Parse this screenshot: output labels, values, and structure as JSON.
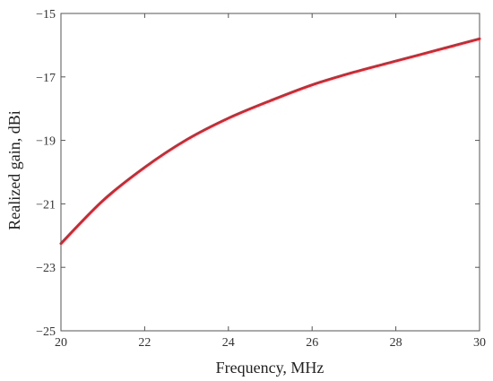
{
  "chart_data": {
    "type": "line",
    "title": "",
    "xlabel": "Frequency, MHz",
    "ylabel": "Realized gain, dBi",
    "xlim": [
      20,
      30
    ],
    "ylim": [
      -25,
      -15
    ],
    "x_ticks": [
      20,
      22,
      24,
      26,
      28,
      30
    ],
    "y_ticks": [
      -25,
      -23,
      -21,
      -19,
      -17,
      -15
    ],
    "x_tick_labels": [
      "20",
      "22",
      "24",
      "26",
      "28",
      "30"
    ],
    "y_tick_labels": [
      "−25",
      "−23",
      "−21",
      "−19",
      "−17",
      "−15"
    ],
    "grid": false,
    "series": [
      {
        "color": "#e0202a",
        "x": [
          20,
          21,
          22,
          23,
          24,
          25,
          26,
          27,
          28,
          29,
          30
        ],
        "y": [
          -22.25,
          -20.9,
          -19.85,
          -18.98,
          -18.3,
          -17.75,
          -17.25,
          -16.85,
          -16.5,
          -16.15,
          -15.8
        ]
      }
    ]
  }
}
